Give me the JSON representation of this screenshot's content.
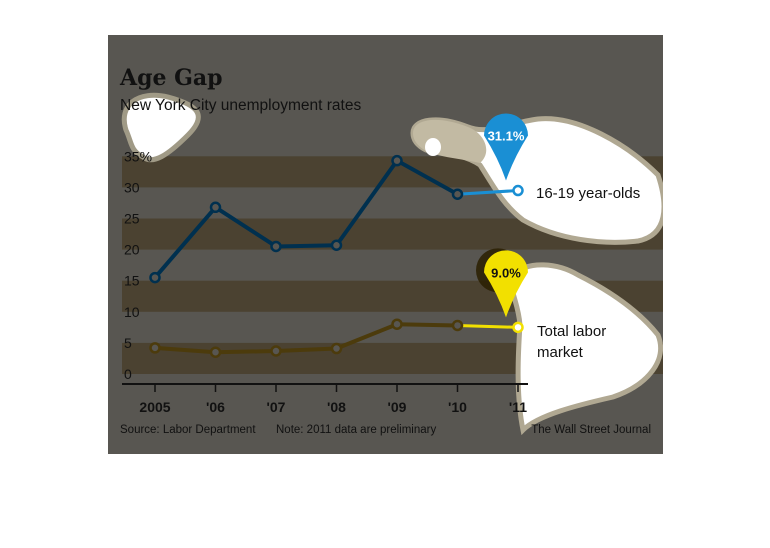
{
  "chart_data": {
    "type": "line",
    "title": "Age Gap",
    "subtitle": "New York City unemployment rates",
    "x": [
      "2005",
      "'06",
      "'07",
      "'08",
      "'09",
      "'10",
      "'11"
    ],
    "y_ticks": [
      "35%",
      "30",
      "25",
      "20",
      "15",
      "10",
      "5",
      "0"
    ],
    "ylim": [
      0,
      35
    ],
    "grid": "horizontal bands",
    "series": [
      {
        "name": "16-19 year-olds",
        "values": [
          15.5,
          26.8,
          20.5,
          20.7,
          34.3,
          28.9,
          29.5
        ],
        "color": "#00304f",
        "callout": "31.1%",
        "callout_color": "#1a8fd4"
      },
      {
        "name": "Total labor market",
        "name_lines": [
          "Total labor",
          "market"
        ],
        "values": [
          4.2,
          3.5,
          3.7,
          4.1,
          8.0,
          7.8,
          7.5
        ],
        "color": "#4c3b0c",
        "callout": "9.0%",
        "callout_color": "#f2e000"
      }
    ],
    "footer": {
      "source": "Source: Labor Department",
      "note": "Note: 2011 data are preliminary",
      "credit": "The Wall Street Journal"
    }
  }
}
